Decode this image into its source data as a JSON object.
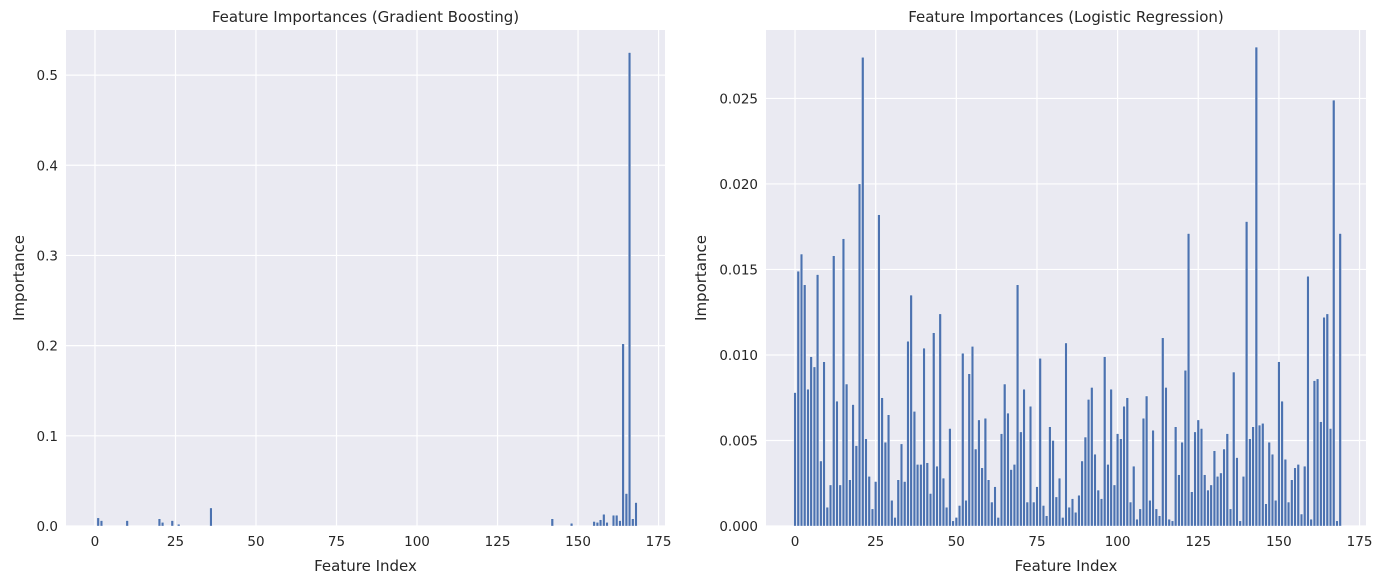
{
  "chart_data": [
    {
      "type": "bar",
      "title": "Feature Importances (Gradient Boosting)",
      "xlabel": "Feature Index",
      "ylabel": "Importance",
      "xlim": [
        -9,
        177
      ],
      "ylim": [
        0,
        0.55
      ],
      "xticks": [
        0,
        25,
        50,
        75,
        100,
        125,
        150,
        175
      ],
      "yticks": [
        0.0,
        0.1,
        0.2,
        0.3,
        0.4,
        0.5
      ],
      "ytick_labels": [
        "0.0",
        "0.1",
        "0.2",
        "0.3",
        "0.4",
        "0.5"
      ],
      "grid": true,
      "bar_color": "#4c72b0",
      "background": "#eaeaf2",
      "x": [
        1,
        2,
        10,
        20,
        21,
        24,
        26,
        36,
        142,
        148,
        155,
        156,
        157,
        158,
        159,
        161,
        162,
        163,
        164,
        165,
        166,
        167,
        168
      ],
      "values": [
        0.009,
        0.006,
        0.006,
        0.008,
        0.004,
        0.006,
        0.002,
        0.02,
        0.008,
        0.003,
        0.005,
        0.004,
        0.007,
        0.013,
        0.004,
        0.012,
        0.012,
        0.006,
        0.202,
        0.036,
        0.525,
        0.008,
        0.026
      ]
    },
    {
      "type": "bar",
      "title": "Feature Importances (Logistic Regression)",
      "xlabel": "Feature Index",
      "ylabel": "Importance",
      "xlim": [
        -9,
        177
      ],
      "ylim": [
        0,
        0.029
      ],
      "xticks": [
        0,
        25,
        50,
        75,
        100,
        125,
        150,
        175
      ],
      "yticks": [
        0.0,
        0.005,
        0.01,
        0.015,
        0.02,
        0.025
      ],
      "ytick_labels": [
        "0.000",
        "0.005",
        "0.010",
        "0.015",
        "0.020",
        "0.025"
      ],
      "grid": true,
      "bar_color": "#4c72b0",
      "background": "#eaeaf2",
      "x_start": 0,
      "values": [
        0.0078,
        0.0149,
        0.0159,
        0.0141,
        0.008,
        0.0099,
        0.0093,
        0.0147,
        0.0038,
        0.0096,
        0.0011,
        0.0024,
        0.0158,
        0.0073,
        0.0024,
        0.0168,
        0.0083,
        0.0027,
        0.0071,
        0.0047,
        0.02,
        0.0274,
        0.0051,
        0.0029,
        0.001,
        0.0026,
        0.0182,
        0.0075,
        0.0049,
        0.0065,
        0.0015,
        0.0005,
        0.0027,
        0.0048,
        0.0026,
        0.0108,
        0.0135,
        0.0067,
        0.0036,
        0.0036,
        0.0104,
        0.0037,
        0.0019,
        0.0113,
        0.0035,
        0.0124,
        0.0028,
        0.0011,
        0.0057,
        0.0003,
        0.0005,
        0.0012,
        0.0101,
        0.0015,
        0.0089,
        0.0105,
        0.0045,
        0.0062,
        0.0034,
        0.0063,
        0.0027,
        0.0014,
        0.0023,
        0.0005,
        0.0054,
        0.0083,
        0.0066,
        0.0033,
        0.0036,
        0.0141,
        0.0055,
        0.008,
        0.0014,
        0.007,
        0.0014,
        0.0023,
        0.0098,
        0.0012,
        0.0006,
        0.0058,
        0.005,
        0.0017,
        0.0028,
        0.0005,
        0.0107,
        0.0011,
        0.0016,
        0.0008,
        0.0018,
        0.0038,
        0.0052,
        0.0074,
        0.0081,
        0.0042,
        0.0021,
        0.0016,
        0.0099,
        0.0036,
        0.008,
        0.0024,
        0.0054,
        0.0051,
        0.007,
        0.0075,
        0.0014,
        0.0035,
        0.0004,
        0.001,
        0.0063,
        0.0076,
        0.0015,
        0.0056,
        0.001,
        0.0006,
        0.011,
        0.0081,
        0.0004,
        0.0003,
        0.0058,
        0.003,
        0.0049,
        0.0091,
        0.0171,
        0.002,
        0.0055,
        0.0062,
        0.0057,
        0.003,
        0.0021,
        0.0024,
        0.0044,
        0.0029,
        0.0031,
        0.0045,
        0.0054,
        0.001,
        0.009,
        0.004,
        0.0003,
        0.0029,
        0.0178,
        0.0051,
        0.0058,
        0.028,
        0.0059,
        0.006,
        0.0013,
        0.0049,
        0.0042,
        0.0015,
        0.0096,
        0.0073,
        0.0039,
        0.0014,
        0.0027,
        0.0034,
        0.0036,
        0.0007,
        0.0035,
        0.0146,
        0.0004,
        0.0085,
        0.0086,
        0.0061,
        0.0122,
        0.0124,
        0.0057,
        0.0249,
        0.0003,
        0.0171
      ]
    }
  ]
}
